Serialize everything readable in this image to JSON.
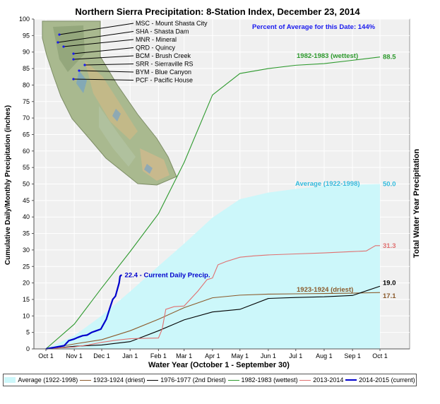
{
  "chart_data": {
    "type": "line",
    "title": "Northern Sierra Precipitation: 8-Station Index, December 23, 2014",
    "xlabel": "Water Year (October 1 - September 30)",
    "ylabel": "Cumulative Daily/Monthly Precipitation (inches)",
    "ylabel_right": "Total Water Year Precipitation",
    "annotation_percent": "Percent of Average for this Date: 144%",
    "ylim": [
      0,
      100
    ],
    "yticks": [
      "0",
      "5",
      "10",
      "15",
      "20",
      "25",
      "30",
      "35",
      "40",
      "45",
      "50",
      "55",
      "60",
      "65",
      "70",
      "75",
      "80",
      "85",
      "90",
      "95",
      "100"
    ],
    "xticks": [
      "Oct 1",
      "Nov 1",
      "Dec 1",
      "Jan 1",
      "Feb 1",
      "Mar 1",
      "Apr 1",
      "May 1",
      "Jun 1",
      "Jul 1",
      "Aug 1",
      "Sep 1",
      "Oct 1"
    ],
    "xlim_days": [
      0,
      365
    ],
    "grid": true,
    "legend_position": "bottom",
    "stations": [
      "MSC - Mount Shasta City",
      "SHA - Shasta Dam",
      "MNR - Mineral",
      "QRD - Quincy",
      "BCM - Brush Creek",
      "SRR - Sierraville RS",
      "BYM - Blue Canyon",
      "PCF - Pacific House"
    ],
    "series": [
      {
        "name": "Average (1922-1998)",
        "kind": "area",
        "color": "#ccf7fa",
        "label_color": "#33bbdd",
        "end_label": "50.0",
        "curve_label": "Average (1922-1998)",
        "days": [
          0,
          31,
          61,
          92,
          123,
          151,
          182,
          212,
          243,
          273,
          304,
          335,
          365
        ],
        "values": [
          0,
          4.0,
          10.1,
          17.4,
          25.1,
          31.9,
          39.8,
          45.4,
          47.4,
          48.5,
          49.4,
          49.8,
          50.0
        ]
      },
      {
        "name": "1923-1924 (driest)",
        "kind": "line",
        "color": "#8b5a2b",
        "end_label": "17.1",
        "curve_label": "1923-1924 (driest)",
        "days": [
          0,
          31,
          61,
          92,
          123,
          151,
          182,
          212,
          243,
          273,
          304,
          335,
          365
        ],
        "values": [
          0,
          1.5,
          2.8,
          5.5,
          9.0,
          12.5,
          15.5,
          16.3,
          16.6,
          16.7,
          16.8,
          16.9,
          17.1
        ]
      },
      {
        "name": "1976-1977 (2nd Driest)",
        "kind": "line",
        "color": "#000000",
        "end_label": "19.0",
        "days": [
          0,
          31,
          61,
          92,
          123,
          151,
          182,
          212,
          243,
          273,
          304,
          335,
          365
        ],
        "values": [
          0,
          0.8,
          1.2,
          2.2,
          5.5,
          8.8,
          11.2,
          12.0,
          15.3,
          15.6,
          15.8,
          16.2,
          19.0
        ]
      },
      {
        "name": "1982-1983 (wettest)",
        "kind": "line",
        "color": "#2e9a2e",
        "end_label": "88.5",
        "curve_label": "1982-1983 (wettest)",
        "days": [
          0,
          31,
          61,
          92,
          123,
          151,
          182,
          212,
          243,
          273,
          304,
          335,
          365
        ],
        "values": [
          0,
          7.5,
          18.5,
          29.5,
          41.0,
          56.5,
          77.0,
          83.5,
          85.0,
          86.0,
          86.5,
          87.5,
          88.5
        ]
      },
      {
        "name": "2013-2014",
        "kind": "line",
        "color": "#e07070",
        "end_label": "31.3",
        "days": [
          0,
          15,
          31,
          46,
          61,
          76,
          92,
          107,
          123,
          127,
          131,
          140,
          151,
          166,
          176,
          182,
          188,
          197,
          212,
          227,
          243,
          273,
          304,
          335,
          350,
          360,
          365
        ],
        "values": [
          0,
          0.3,
          0.6,
          1.2,
          2.0,
          2.6,
          3.1,
          3.2,
          3.3,
          6.0,
          12.0,
          12.8,
          13.0,
          17.5,
          21.0,
          21.5,
          25.5,
          26.5,
          27.8,
          28.2,
          28.5,
          28.8,
          29.1,
          29.5,
          29.7,
          31.3,
          31.3
        ]
      },
      {
        "name": "2014-2015 (current)",
        "kind": "line",
        "color": "#0000cc",
        "end_label": "22.4",
        "curve_label": "22.4 -  Current Daily Precip.",
        "days": [
          0,
          10,
          20,
          25,
          31,
          35,
          40,
          45,
          50,
          55,
          60,
          62,
          66,
          70,
          73,
          76,
          78,
          80,
          81,
          82,
          83
        ],
        "values": [
          0,
          0.5,
          1.0,
          2.5,
          3.0,
          3.5,
          4.0,
          4.2,
          5.0,
          5.5,
          6.0,
          7.0,
          9.0,
          12.5,
          15.0,
          16.0,
          18.0,
          20.0,
          22.0,
          22.3,
          22.4
        ]
      }
    ]
  },
  "colors": {
    "plot_bg": "#f0f0f0",
    "grid": "#ffffff",
    "title": "#000000",
    "annotation": "#1a1aee"
  }
}
